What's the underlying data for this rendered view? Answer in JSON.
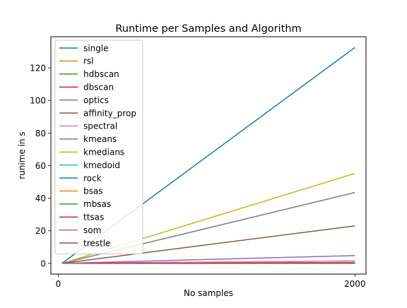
{
  "chart_data": {
    "type": "line",
    "title": "Runtime per Samples and Algorithm",
    "xlabel": "No samples",
    "ylabel": "runime in s",
    "x": [
      25,
      2000
    ],
    "xlim": [
      -50,
      2075
    ],
    "ylim": [
      -6.6,
      139.1
    ],
    "xticks": [
      0,
      2000
    ],
    "yticks": [
      0,
      20,
      40,
      60,
      80,
      100,
      120
    ],
    "grid": false,
    "legend_position": "upper-left",
    "series": [
      {
        "name": "single",
        "color": "#1f77b4",
        "values": [
          0,
          132.5
        ]
      },
      {
        "name": "rsl",
        "color": "#ff7f0e",
        "values": [
          0,
          0.2
        ]
      },
      {
        "name": "hdbscan",
        "color": "#2ca02c",
        "values": [
          0,
          0.3
        ]
      },
      {
        "name": "dbscan",
        "color": "#d62728",
        "values": [
          0,
          0.2
        ]
      },
      {
        "name": "optics",
        "color": "#9467bd",
        "values": [
          0,
          1.5
        ]
      },
      {
        "name": "affinity_prop",
        "color": "#8c564b",
        "values": [
          0,
          0.5
        ]
      },
      {
        "name": "spectral",
        "color": "#e377c2",
        "values": [
          0,
          1.5
        ]
      },
      {
        "name": "kmeans",
        "color": "#7f7f7f",
        "values": [
          0,
          43.5
        ]
      },
      {
        "name": "kmedians",
        "color": "#bcbd22",
        "values": [
          0,
          55.2
        ]
      },
      {
        "name": "kmedoid",
        "color": "#17becf",
        "values": [
          0,
          0.5
        ]
      },
      {
        "name": "rock",
        "color": "#1f77b4",
        "values": [
          0,
          0.3
        ]
      },
      {
        "name": "bsas",
        "color": "#ff7f0e",
        "values": [
          0,
          0.2
        ]
      },
      {
        "name": "mbsas",
        "color": "#2ca02c",
        "values": [
          0,
          0.2
        ]
      },
      {
        "name": "ttsas",
        "color": "#d62728",
        "values": [
          0,
          0.1
        ]
      },
      {
        "name": "som",
        "color": "#9467bd",
        "values": [
          0,
          4.8
        ]
      },
      {
        "name": "trestle",
        "color": "#8c564b",
        "values": [
          0,
          23.0
        ]
      }
    ]
  }
}
